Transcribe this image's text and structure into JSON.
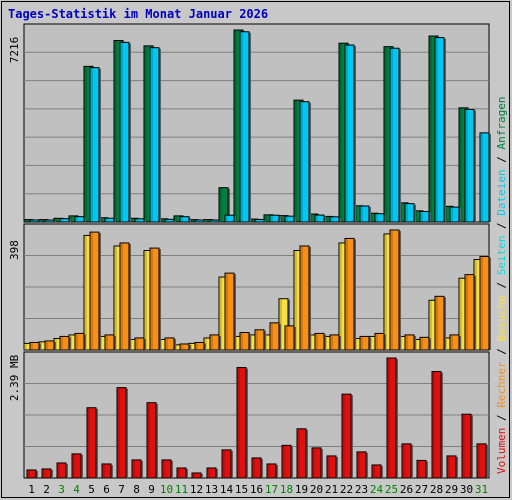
{
  "title": "Tages-Statistik im Monat Januar 2026",
  "colors": {
    "background": "#c8c8c8",
    "plot_bg": "#c0c0c0",
    "grid": "#808080",
    "title": "#0000c0",
    "anfragen": "#008040",
    "dateien": "#00c8f0",
    "seiten": "#00e0e0",
    "besuche": "#f8e040",
    "rechner": "#f89018",
    "volumen": "#e01010",
    "weekend": "#008000",
    "weekday": "#000000",
    "panel_label": "#000000"
  },
  "chart_data": [
    {
      "type": "bar",
      "panel": "top",
      "axis_label": "7216",
      "ylim": [
        0,
        7216
      ],
      "categories": [
        "1",
        "2",
        "3",
        "4",
        "5",
        "6",
        "7",
        "8",
        "9",
        "10",
        "11",
        "12",
        "13",
        "14",
        "15",
        "16",
        "17",
        "18",
        "19",
        "20",
        "21",
        "22",
        "23",
        "24",
        "25",
        "26",
        "27",
        "28",
        "29",
        "30",
        "31"
      ],
      "series": [
        {
          "name": "Anfragen",
          "values": [
            90,
            90,
            140,
            230,
            5850,
            160,
            6820,
            140,
            6620,
            120,
            230,
            90,
            90,
            1290,
            7216,
            110,
            270,
            240,
            4580,
            300,
            210,
            6720,
            610,
            330,
            6590,
            720,
            420,
            6990,
            590,
            4290,
            0
          ]
        },
        {
          "name": "Dateien",
          "values": [
            75,
            75,
            125,
            200,
            5800,
            140,
            6750,
            120,
            6550,
            100,
            200,
            75,
            75,
            255,
            7150,
            95,
            255,
            220,
            4520,
            260,
            195,
            6650,
            600,
            310,
            6530,
            690,
            395,
            6930,
            560,
            4230,
            3350
          ]
        }
      ]
    },
    {
      "type": "bar",
      "panel": "middle",
      "axis_label": "398",
      "ylim": [
        0,
        398
      ],
      "categories": [
        "1",
        "2",
        "3",
        "4",
        "5",
        "6",
        "7",
        "8",
        "9",
        "10",
        "11",
        "12",
        "13",
        "14",
        "15",
        "16",
        "17",
        "18",
        "19",
        "20",
        "21",
        "22",
        "23",
        "24",
        "25",
        "26",
        "27",
        "28",
        "29",
        "30",
        "31"
      ],
      "series": [
        {
          "name": "Seiten",
          "values": [
            0,
            0,
            0,
            0,
            0,
            0,
            0,
            0,
            0,
            0,
            0,
            0,
            0,
            0,
            0,
            0,
            0,
            0,
            0,
            0,
            0,
            0,
            0,
            0,
            0,
            0,
            0,
            0,
            0,
            0,
            0
          ]
        },
        {
          "name": "Besuche",
          "values": [
            22,
            27,
            38,
            50,
            380,
            45,
            345,
            35,
            330,
            35,
            17,
            22,
            40,
            242,
            45,
            50,
            50,
            170,
            330,
            50,
            45,
            355,
            38,
            45,
            385,
            45,
            35,
            165,
            40,
            238,
            300
          ]
        },
        {
          "name": "Rechner",
          "values": [
            25,
            30,
            45,
            55,
            391,
            50,
            355,
            40,
            338,
            40,
            20,
            25,
            50,
            255,
            58,
            67,
            90,
            80,
            345,
            55,
            50,
            370,
            45,
            55,
            398,
            50,
            42,
            178,
            50,
            250,
            310
          ]
        }
      ]
    },
    {
      "type": "bar",
      "panel": "bottom",
      "axis_label": "2.39 MB",
      "ylim": [
        0,
        2.39
      ],
      "categories": [
        "1",
        "2",
        "3",
        "4",
        "5",
        "6",
        "7",
        "8",
        "9",
        "10",
        "11",
        "12",
        "13",
        "14",
        "15",
        "16",
        "17",
        "18",
        "19",
        "20",
        "21",
        "22",
        "23",
        "24",
        "25",
        "26",
        "27",
        "28",
        "29",
        "30",
        "31"
      ],
      "series": [
        {
          "name": "Volumen",
          "values": [
            0.16,
            0.18,
            0.3,
            0.48,
            1.4,
            0.28,
            1.8,
            0.36,
            1.5,
            0.36,
            0.2,
            0.1,
            0.2,
            0.56,
            2.2,
            0.4,
            0.28,
            0.65,
            0.98,
            0.6,
            0.44,
            1.67,
            0.52,
            0.26,
            2.39,
            0.68,
            0.35,
            2.12,
            0.44,
            1.27,
            0.68
          ]
        }
      ]
    }
  ],
  "legend_right": [
    {
      "text": "Volumen",
      "color_key": "volumen"
    },
    {
      "text": "/",
      "color_key": "panel_label"
    },
    {
      "text": "Rechner",
      "color_key": "rechner"
    },
    {
      "text": "/",
      "color_key": "panel_label"
    },
    {
      "text": "Besuche",
      "color_key": "besuche"
    },
    {
      "text": "/",
      "color_key": "panel_label"
    },
    {
      "text": "Seiten",
      "color_key": "seiten"
    },
    {
      "text": "/",
      "color_key": "panel_label"
    },
    {
      "text": "Dateien",
      "color_key": "dateien"
    },
    {
      "text": "/",
      "color_key": "panel_label"
    },
    {
      "text": "Anfragen",
      "color_key": "anfragen"
    }
  ],
  "weekend_days": [
    "3",
    "4",
    "10",
    "11",
    "17",
    "18",
    "24",
    "25",
    "31"
  ]
}
